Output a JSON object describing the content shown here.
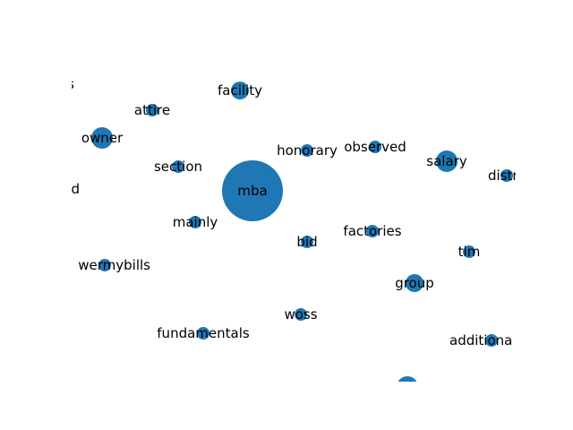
{
  "node_color": "#1f77b4",
  "nodes": [
    {
      "id": "mba",
      "label": "mba"
    },
    {
      "id": "facility",
      "label": "facility"
    },
    {
      "id": "attire",
      "label": "attire"
    },
    {
      "id": "owner",
      "label": "owner"
    },
    {
      "id": "section",
      "label": "section"
    },
    {
      "id": "honorary",
      "label": "honorary"
    },
    {
      "id": "observed",
      "label": "observed"
    },
    {
      "id": "salary",
      "label": "salary"
    },
    {
      "id": "mainly",
      "label": "mainly"
    },
    {
      "id": "bid",
      "label": "bid"
    },
    {
      "id": "factories",
      "label": "factories"
    },
    {
      "id": "tim",
      "label": "tim"
    },
    {
      "id": "group",
      "label": "group"
    },
    {
      "id": "woss",
      "label": "woss"
    },
    {
      "id": "fundamentals",
      "label": "fundamentals"
    },
    {
      "id": "additional",
      "label": "additiona"
    },
    {
      "id": "powermybills",
      "label": "wermybills"
    },
    {
      "id": "partial-d",
      "label": "d"
    },
    {
      "id": "partial-s",
      "label": "s"
    },
    {
      "id": "partial-distr",
      "label": "distr"
    },
    {
      "id": "partial-bottom",
      "label": ""
    }
  ]
}
